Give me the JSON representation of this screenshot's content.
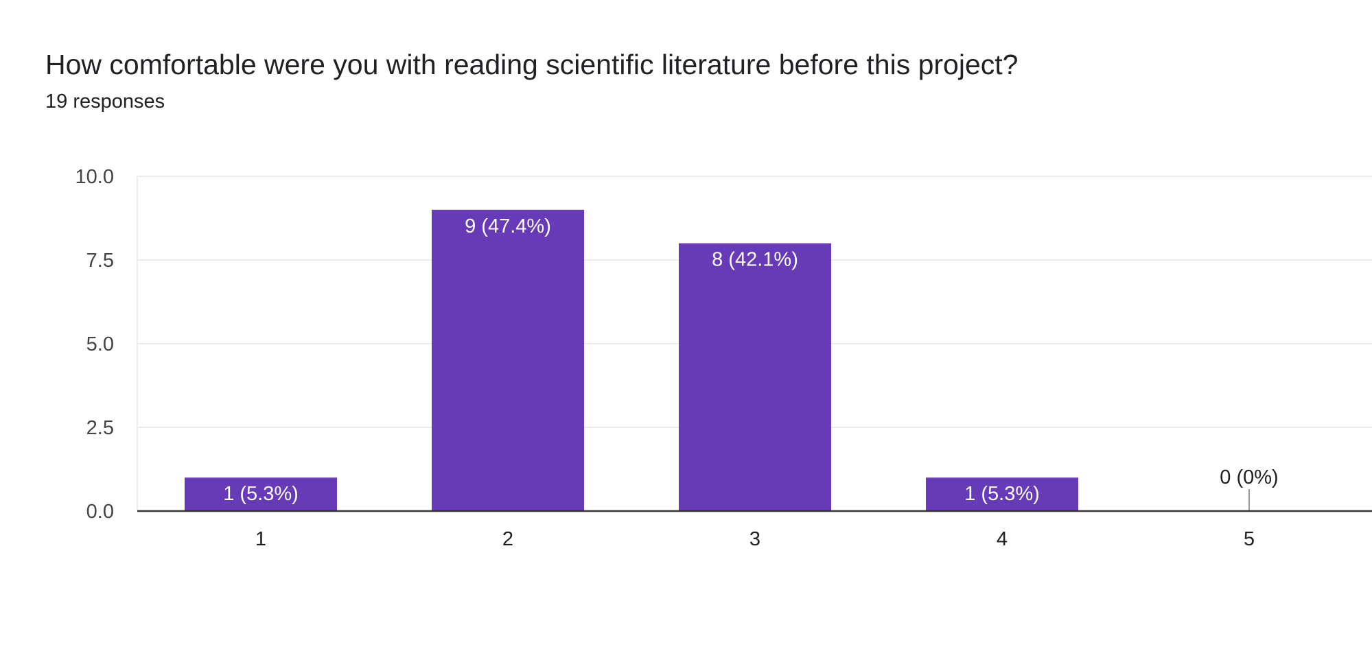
{
  "question": {
    "title": "How comfortable were you with reading scientific literature before this project?",
    "responses": "19 responses"
  },
  "colors": {
    "bar": "#673ab7",
    "grid": "#ebebeb",
    "axis": "#333333",
    "label_inside": "#ffffff",
    "label_outside": "#202124"
  },
  "chart_data": {
    "type": "bar",
    "categories": [
      "1",
      "2",
      "3",
      "4",
      "5"
    ],
    "values": [
      1,
      9,
      8,
      1,
      0
    ],
    "data_labels": [
      "1 (5.3%)",
      "9 (47.4%)",
      "8 (42.1%)",
      "1 (5.3%)",
      "0 (0%)"
    ],
    "title": "How comfortable were you with reading scientific literature before this project?",
    "subtitle": "19 responses",
    "ylim": [
      0,
      10
    ],
    "yticks": [
      "0.0",
      "2.5",
      "5.0",
      "7.5",
      "10.0"
    ],
    "grid": true,
    "legend": "none"
  }
}
